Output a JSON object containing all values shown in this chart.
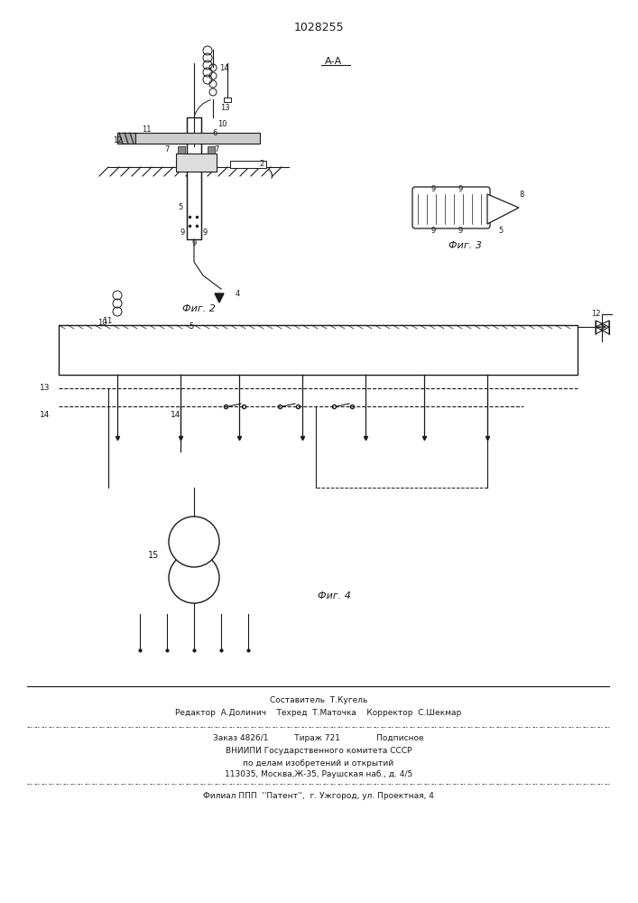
{
  "patent_number": "1028255",
  "fig2_label": "Фиг. 2",
  "fig3_label": "Фиг. 3",
  "fig4_label": "Фиг. 4",
  "section_label": "А-А",
  "footer_line1": "Составитель  Т.Кугель",
  "footer_line2": "Редактор  А.Долинич    Техред  Т.Маточка    Корректор  С.Шекмар",
  "footer_line3": "Заказ 4826/1          Тираж 721              Подписное",
  "footer_line4": "ВНИИПИ Государственного комитета СССР",
  "footer_line5": "по делам изобретений и открытий",
  "footer_line6": "113035, Москва,Ж-35, Раушская наб., д. 4/5",
  "footer_line7": "Филиал ППП  ''Патент'',  г. Ужгород, ул. Проектная, 4",
  "bg_color": "#ffffff",
  "line_color": "#1a1a1a"
}
